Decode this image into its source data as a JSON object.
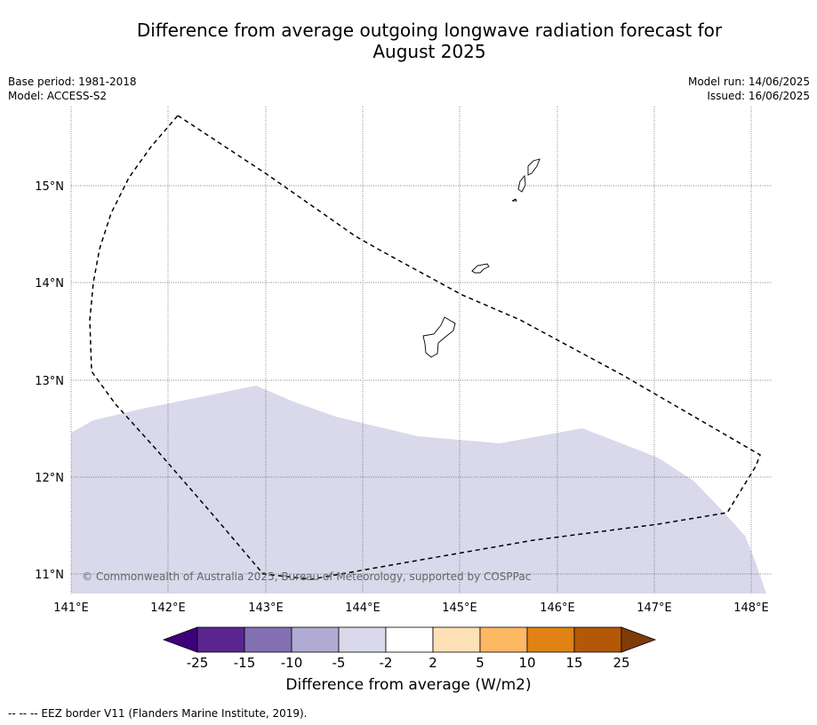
{
  "title_line1": "Difference from average outgoing longwave radiation forecast for",
  "title_line2": "August 2025",
  "meta_left": [
    "Base period: 1981-2018",
    "Model: ACCESS-S2"
  ],
  "meta_right": [
    "Model run: 14/06/2025",
    "Issued: 16/06/2025"
  ],
  "lon_ticks": [
    "141°E",
    "142°E",
    "143°E",
    "144°E",
    "145°E",
    "146°E",
    "147°E",
    "148°E"
  ],
  "lat_ticks": [
    "15°N",
    "14°N",
    "13°N",
    "12°N",
    "11°N"
  ],
  "copyright": "© Commonwealth of Australia 2025, Bureau of Meteorology, supported by COSPPac",
  "colorbar": {
    "label": "Difference from average (W/m2)",
    "ticks": [
      "-25",
      "-15",
      "-10",
      "-5",
      "-2",
      "2",
      "5",
      "10",
      "15",
      "25"
    ],
    "colors": [
      "#3f007d",
      "#5b2590",
      "#8270b2",
      "#b1aad3",
      "#d9d9eb",
      "#ffffff",
      "#fde0b6",
      "#fdb863",
      "#e08214",
      "#b35806",
      "#7f3b08"
    ]
  },
  "footer": "--  --  -- EEZ border V11 (Flanders Marine Institute, 2019).",
  "map": {
    "anomaly_region": "-5 to -2"
  }
}
